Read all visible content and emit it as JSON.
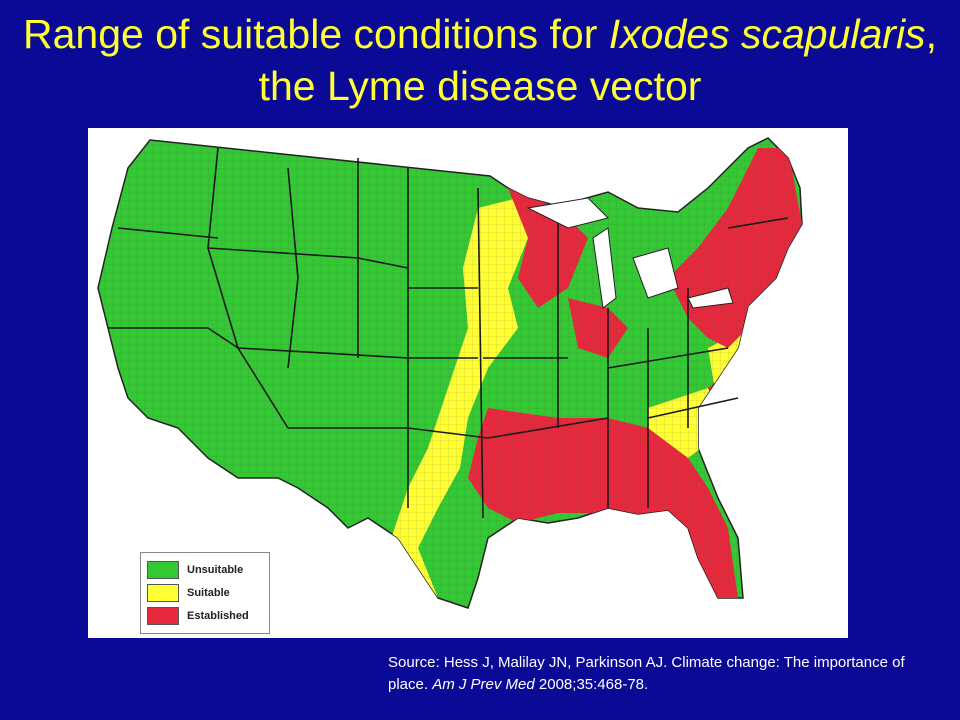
{
  "title": {
    "part1": "Range of suitable conditions for ",
    "italic1": "Ixodes scapularis",
    "part2": ", the Lyme disease vector"
  },
  "legend": {
    "items": [
      {
        "label": "Unsuitable",
        "color": "#33c933"
      },
      {
        "label": "Suitable",
        "color": "#ffff33"
      },
      {
        "label": "Established",
        "color": "#e8283c"
      }
    ]
  },
  "source": {
    "text1": "Source:  Hess J, Malilay JN, Parkinson AJ.  Climate change: The importance of place.  ",
    "journal": "Am J Prev Med",
    "text2": " 2008;35:468-78."
  },
  "colors": {
    "background": "#0a0a96",
    "title": "#ffff33",
    "unsuitable": "#33c933",
    "suitable": "#ffff33",
    "established": "#e8283c"
  }
}
